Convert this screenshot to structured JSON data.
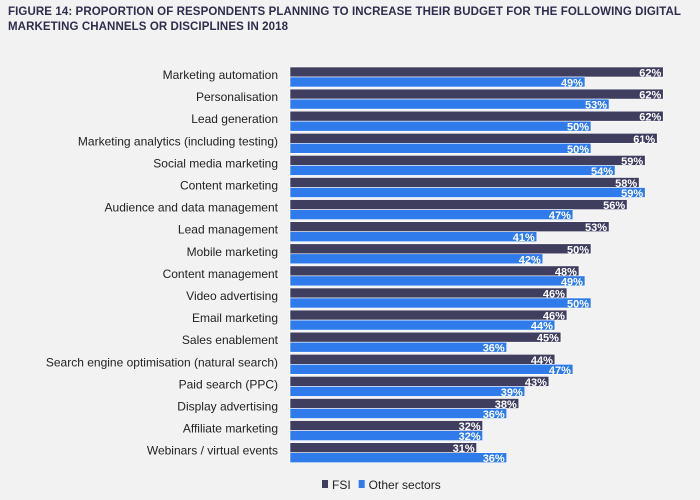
{
  "chart_data": {
    "type": "bar",
    "orientation": "horizontal",
    "title": "FIGURE 14: PROPORTION OF RESPONDENTS PLANNING TO INCREASE THEIR BUDGET FOR THE FOLLOWING DIGITAL MARKETING CHANNELS OR DISCIPLINES IN 2018",
    "categories": [
      "Marketing automation",
      "Personalisation",
      "Lead generation",
      "Marketing analytics (including testing)",
      "Social media marketing",
      "Content marketing",
      "Audience and data management",
      "Lead management",
      "Mobile marketing",
      "Content management",
      "Video advertising",
      "Email marketing",
      "Sales enablement",
      "Search engine optimisation (natural search)",
      "Paid search (PPC)",
      "Display advertising",
      "Affiliate marketing",
      "Webinars / virtual events"
    ],
    "series": [
      {
        "name": "FSI",
        "color": "#3f3e5e",
        "values": [
          62,
          62,
          62,
          61,
          59,
          58,
          56,
          53,
          50,
          48,
          46,
          46,
          45,
          44,
          43,
          38,
          32,
          31
        ]
      },
      {
        "name": "Other sectors",
        "color": "#2f7bec",
        "values": [
          49,
          53,
          50,
          50,
          54,
          59,
          47,
          41,
          42,
          49,
          50,
          44,
          36,
          47,
          39,
          36,
          32,
          36
        ]
      }
    ],
    "value_suffix": "%",
    "legend_position": "bottom",
    "grid": false,
    "background": "#f2f2f2"
  }
}
